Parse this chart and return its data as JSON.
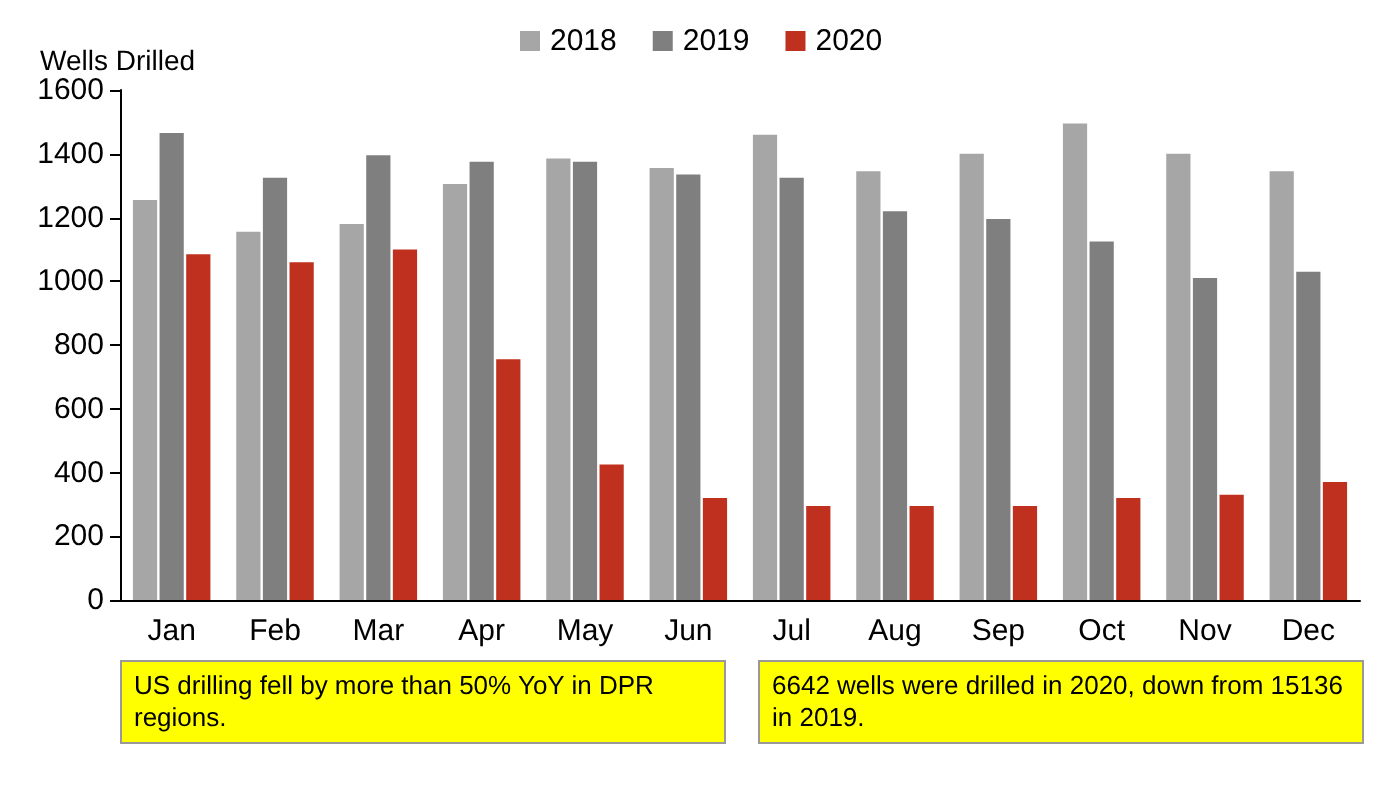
{
  "chart_data": {
    "type": "bar",
    "ylabel": "Wells Drilled",
    "categories": [
      "Jan",
      "Feb",
      "Mar",
      "Apr",
      "May",
      "Jun",
      "Jul",
      "Aug",
      "Sep",
      "Oct",
      "Nov",
      "Dec"
    ],
    "series": [
      {
        "name": "2018",
        "color": "#a6a6a6",
        "values": [
          1255,
          1155,
          1180,
          1305,
          1385,
          1355,
          1460,
          1345,
          1400,
          1495,
          1400,
          1345
        ]
      },
      {
        "name": "2019",
        "color": "#7f7f7f",
        "values": [
          1465,
          1325,
          1395,
          1375,
          1375,
          1335,
          1325,
          1220,
          1195,
          1125,
          1010,
          1030
        ]
      },
      {
        "name": "2020",
        "color": "#c0301e",
        "values": [
          1085,
          1060,
          1100,
          755,
          425,
          320,
          295,
          295,
          295,
          320,
          330,
          370
        ]
      }
    ],
    "ylim": [
      0,
      1600
    ],
    "yticks": [
      0,
      200,
      400,
      600,
      800,
      1000,
      1200,
      1400,
      1600
    ],
    "legend": "top",
    "grid": false,
    "annotations": [
      "US drilling fell by more than 50% YoY in DPR regions.",
      "6642 wells were drilled in 2020, down from 15136 in 2019."
    ]
  }
}
